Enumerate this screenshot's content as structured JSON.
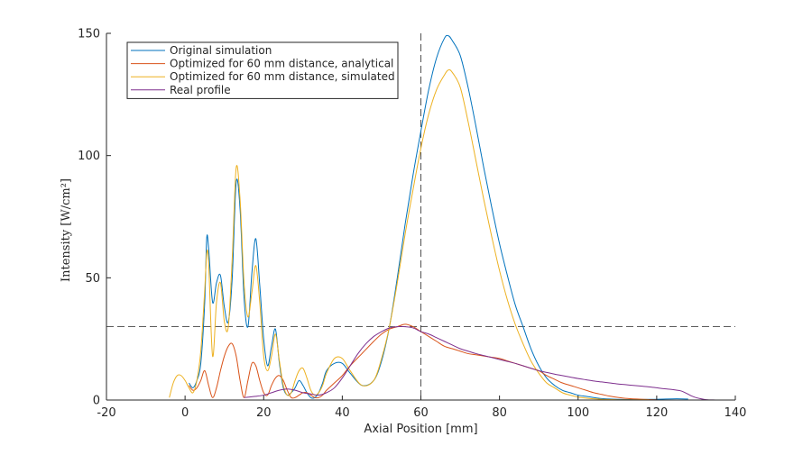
{
  "chart_data": {
    "type": "line",
    "title": "",
    "xlabel": "Axial Position [mm]",
    "ylabel": "Intensity  [W/cm²]",
    "xlim": [
      -20,
      140
    ],
    "ylim": [
      0,
      150
    ],
    "xticks": [
      -20,
      0,
      20,
      40,
      60,
      80,
      100,
      120,
      140
    ],
    "yticks": [
      0,
      50,
      100,
      150
    ],
    "grid": false,
    "legend_position": "top-left",
    "reference_lines": {
      "vertical_x": 60,
      "horizontal_y": 30
    },
    "series": [
      {
        "name": "Original simulation",
        "color": "#0072BD",
        "x": [
          1,
          2,
          3,
          4,
          5,
          5.5,
          6,
          7,
          8,
          9,
          10,
          11,
          12,
          13,
          14,
          15,
          16,
          17,
          18,
          19,
          20,
          21,
          22,
          23,
          24,
          25,
          26,
          27,
          28,
          29,
          30,
          31,
          32,
          33,
          34,
          35,
          36,
          38,
          40,
          42,
          45,
          48,
          50,
          52,
          54,
          56,
          58,
          60,
          62,
          64,
          66,
          67,
          68,
          70,
          72,
          74,
          76,
          78,
          80,
          82,
          84,
          86,
          88,
          90,
          92,
          94,
          96,
          98,
          100,
          102,
          104,
          106,
          108,
          110,
          112,
          115,
          120,
          125,
          128
        ],
        "y": [
          7,
          5,
          8,
          15,
          40,
          66,
          62,
          40,
          48,
          51,
          38,
          32,
          50,
          89,
          78,
          42,
          30,
          52,
          66,
          47,
          25,
          14,
          22,
          29,
          15,
          5,
          2,
          3,
          5,
          8,
          6,
          3,
          1,
          1,
          3,
          7,
          12,
          15,
          15,
          11,
          6,
          8,
          16,
          30,
          50,
          72,
          92,
          110,
          127,
          140,
          148,
          149,
          147,
          141,
          128,
          112,
          95,
          79,
          64,
          51,
          39,
          30,
          21,
          14,
          9,
          6,
          4,
          3,
          2,
          1.5,
          1,
          0.6,
          0.4,
          0.3,
          0.2,
          0.2,
          0.3,
          0.5,
          0.4
        ]
      },
      {
        "name": "Optimized for 60 mm distance, analytical",
        "color": "#D95319",
        "x": [
          1,
          2,
          3,
          4,
          5,
          6,
          7,
          8,
          9,
          10,
          11,
          12,
          13,
          14,
          15,
          16,
          17,
          18,
          19,
          20,
          21,
          22,
          23,
          24,
          25,
          26,
          27,
          28,
          29,
          30,
          31,
          32,
          33,
          34,
          35,
          36,
          38,
          40,
          42,
          45,
          48,
          50,
          52,
          54,
          56,
          58,
          60,
          62,
          64,
          66,
          68,
          70,
          72,
          74,
          76,
          78,
          80,
          82,
          84,
          86,
          88,
          90,
          92,
          94,
          96,
          98,
          100,
          102,
          104,
          106,
          108,
          110,
          112,
          115,
          118,
          120
        ],
        "y": [
          6,
          4,
          5,
          8,
          12,
          6,
          1,
          5,
          12,
          18,
          22,
          23,
          18,
          8,
          1,
          8,
          15,
          14,
          8,
          3,
          2,
          6,
          9,
          10,
          8,
          4,
          1,
          1,
          2,
          3,
          3,
          2,
          1,
          1,
          2,
          4,
          7,
          10,
          14,
          19,
          24,
          27,
          29,
          30,
          31,
          30,
          28,
          26,
          24,
          22,
          21,
          20,
          19,
          18.5,
          18,
          17.5,
          17,
          16,
          15,
          14,
          13,
          12,
          10,
          8.5,
          7,
          6,
          5,
          4,
          3,
          2.3,
          1.6,
          1.1,
          0.7,
          0.4,
          0.2,
          0.1
        ]
      },
      {
        "name": "Optimized for 60 mm distance, simulated",
        "color": "#EDB120",
        "x": [
          -4,
          -3,
          -2,
          -1,
          0,
          1,
          2,
          3,
          4,
          5,
          5.5,
          6,
          7,
          8,
          9,
          10,
          11,
          12,
          13,
          14,
          15,
          16,
          17,
          18,
          19,
          20,
          21,
          22,
          23,
          24,
          25,
          26,
          27,
          28,
          29,
          30,
          31,
          32,
          33,
          34,
          35,
          36,
          38,
          40,
          42,
          45,
          48,
          50,
          52,
          54,
          56,
          58,
          60,
          62,
          64,
          66,
          67,
          68,
          70,
          72,
          74,
          76,
          78,
          80,
          82,
          84,
          86,
          88,
          90,
          92,
          94,
          96,
          98,
          100,
          102,
          104,
          106,
          108,
          110,
          112,
          115,
          118
        ],
        "y": [
          1,
          7,
          10,
          10,
          8,
          5,
          3,
          8,
          20,
          45,
          60,
          56,
          18,
          40,
          48,
          32,
          30,
          58,
          95,
          82,
          48,
          34,
          44,
          55,
          40,
          18,
          12,
          18,
          27,
          16,
          6,
          2,
          3,
          8,
          12,
          13,
          9,
          4,
          2,
          3,
          6,
          11,
          17,
          17,
          12,
          6,
          8,
          17,
          30,
          48,
          68,
          86,
          103,
          117,
          127,
          133,
          135,
          134,
          128,
          114,
          98,
          82,
          67,
          53,
          41,
          31,
          23,
          16,
          11,
          7,
          5,
          3,
          2,
          1.2,
          0.8,
          0.5,
          0.3,
          0.2,
          0.1,
          0.1,
          0.1,
          0.1
        ]
      },
      {
        "name": "Real profile",
        "color": "#7E2F8E",
        "x": [
          15,
          18,
          20,
          22,
          24,
          26,
          28,
          30,
          32,
          34,
          36,
          38,
          40,
          42,
          44,
          46,
          48,
          50,
          52,
          54,
          56,
          58,
          60,
          62,
          64,
          66,
          68,
          70,
          72,
          74,
          76,
          78,
          80,
          82,
          84,
          86,
          88,
          90,
          92,
          94,
          96,
          98,
          100,
          102,
          104,
          106,
          108,
          110,
          112,
          114,
          116,
          118,
          120,
          122,
          124,
          126,
          127,
          128,
          129,
          130,
          131,
          132,
          133,
          134,
          135
        ],
        "y": [
          1,
          1.5,
          2,
          3,
          4,
          4.5,
          4,
          3,
          2.5,
          2,
          3,
          5,
          9,
          14,
          19,
          23,
          26,
          28,
          29.5,
          30,
          30,
          29.5,
          28,
          27,
          25.5,
          24,
          22.5,
          21,
          20,
          19,
          18.2,
          17.4,
          16.6,
          15.8,
          15,
          14,
          13,
          12,
          11.3,
          10.6,
          10,
          9.4,
          8.8,
          8.3,
          7.8,
          7.4,
          7,
          6.6,
          6.3,
          6,
          5.7,
          5.4,
          5,
          4.6,
          4.3,
          3.8,
          3.2,
          2.4,
          1.6,
          1,
          0.6,
          0.3,
          0.1,
          0.05,
          0
        ]
      }
    ]
  }
}
